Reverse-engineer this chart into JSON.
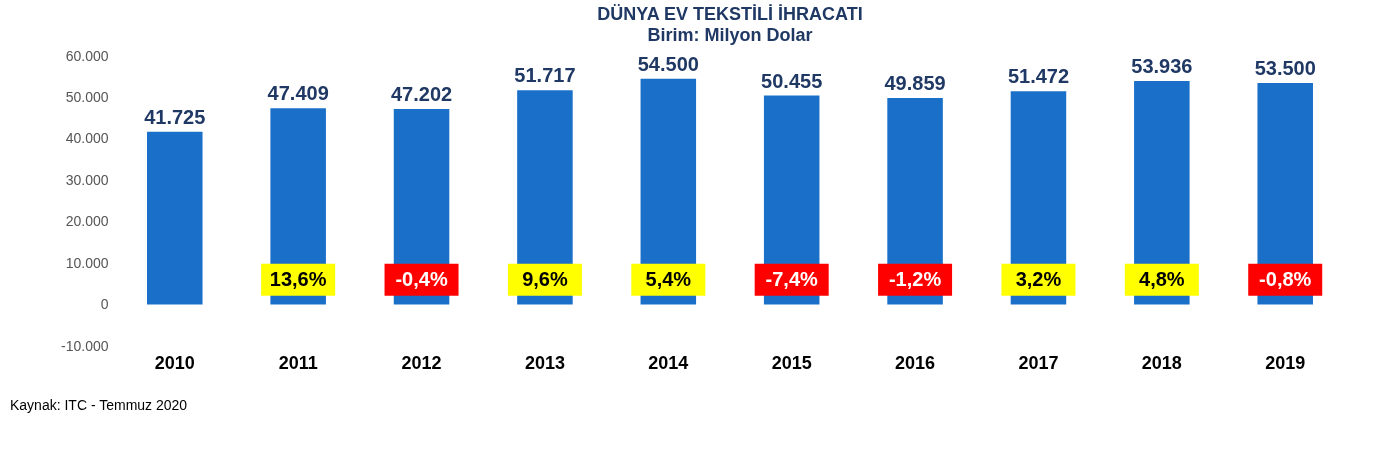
{
  "chart_data": {
    "type": "bar",
    "title": "DÜNYA EV TEKSTİLİ İHRACATI",
    "subtitle": "Birim: Milyon Dolar",
    "categories": [
      "2010",
      "2011",
      "2012",
      "2013",
      "2014",
      "2015",
      "2016",
      "2017",
      "2018",
      "2019"
    ],
    "values": [
      41725,
      47409,
      47202,
      51717,
      54500,
      50455,
      49859,
      51472,
      53936,
      53500
    ],
    "value_labels": [
      "41.725",
      "47.409",
      "47.202",
      "51.717",
      "54.500",
      "50.455",
      "49.859",
      "51.472",
      "53.936",
      "53.500"
    ],
    "color": "#1a6fc9",
    "ylim": [
      -10000,
      60000
    ],
    "yticks": [
      {
        "value": -10000,
        "label": "-10.000"
      },
      {
        "value": 0,
        "label": "0"
      },
      {
        "value": 10000,
        "label": "10.000"
      },
      {
        "value": 20000,
        "label": "20.000"
      },
      {
        "value": 30000,
        "label": "30.000"
      },
      {
        "value": 40000,
        "label": "40.000"
      },
      {
        "value": 50000,
        "label": "50.000"
      },
      {
        "value": 60000,
        "label": "60.000"
      }
    ],
    "annotations": [
      "13,6%",
      "-0,4%",
      "9,6%",
      "5,4%",
      "-7,4%",
      "-1,2%",
      "3,2%",
      "4,8%",
      "-0,8%",
      "Kaynak: ITC - Temmuz 2020"
    ]
  }
}
